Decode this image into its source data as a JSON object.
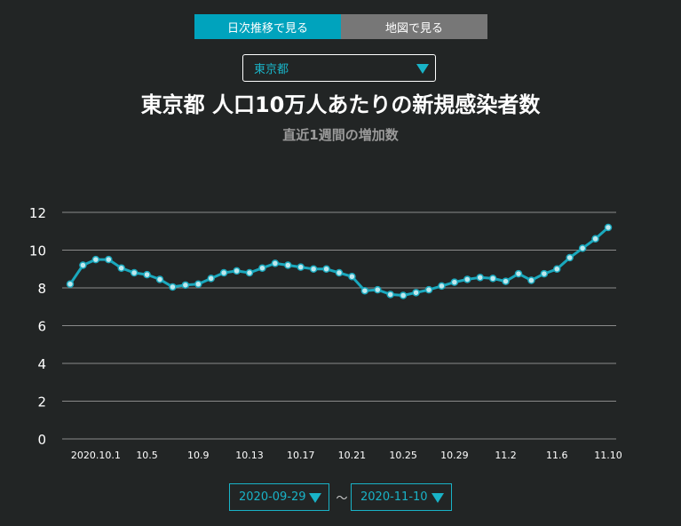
{
  "tabs": {
    "daily": "日次推移で見る",
    "map": "地図で見る"
  },
  "prefecture_select": {
    "value": "東京都"
  },
  "date_range": {
    "start": "2020-09-29",
    "separator": "〜",
    "end": "2020-11-10"
  },
  "colors": {
    "accent": "#00a3bd",
    "line": "#1aa8bd",
    "marker": "#bfe8ee",
    "grid": "#8a8a8a",
    "background": "#222525"
  },
  "chart_data": {
    "type": "line",
    "title": "東京都 人口10万人あたりの新規感染者数",
    "subtitle": "直近1週間の増加数",
    "xlabel": "",
    "ylabel": "",
    "ylim": [
      0,
      12
    ],
    "yticks": [
      0,
      2,
      4,
      6,
      8,
      10,
      12
    ],
    "grid": true,
    "x": [
      "9.29",
      "9.30",
      "10.1",
      "10.2",
      "10.3",
      "10.4",
      "10.5",
      "10.6",
      "10.7",
      "10.8",
      "10.9",
      "10.10",
      "10.11",
      "10.12",
      "10.13",
      "10.14",
      "10.15",
      "10.16",
      "10.17",
      "10.18",
      "10.19",
      "10.20",
      "10.21",
      "10.22",
      "10.23",
      "10.24",
      "10.25",
      "10.26",
      "10.27",
      "10.28",
      "10.29",
      "10.30",
      "10.31",
      "11.1",
      "11.2",
      "11.3",
      "11.4",
      "11.5",
      "11.6",
      "11.7",
      "11.8",
      "11.9",
      "11.10"
    ],
    "xtick_labels": [
      "2020.10.1",
      "10.5",
      "10.9",
      "10.13",
      "10.17",
      "10.21",
      "10.25",
      "10.29",
      "11.2",
      "11.6",
      "11.10"
    ],
    "xtick_index": [
      2,
      6,
      10,
      14,
      18,
      22,
      26,
      30,
      34,
      38,
      42
    ],
    "values": [
      8.2,
      9.2,
      9.5,
      9.5,
      9.05,
      8.8,
      8.7,
      8.45,
      8.05,
      8.15,
      8.2,
      8.5,
      8.8,
      8.9,
      8.8,
      9.05,
      9.3,
      9.2,
      9.1,
      9.0,
      9.0,
      8.8,
      8.6,
      7.85,
      7.9,
      7.65,
      7.6,
      7.75,
      7.9,
      8.1,
      8.3,
      8.45,
      8.55,
      8.5,
      8.35,
      8.75,
      8.4,
      8.75,
      9.0,
      9.6,
      10.1,
      10.6,
      11.2
    ]
  }
}
